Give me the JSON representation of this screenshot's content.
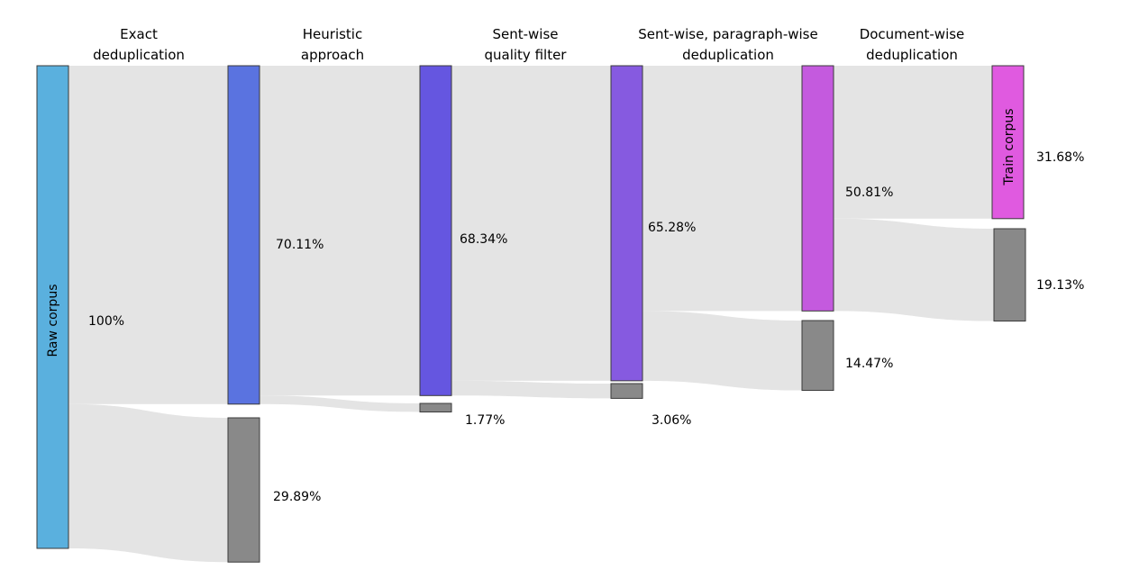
{
  "stages": [
    {
      "lines": [
        "Exact",
        "deduplication"
      ]
    },
    {
      "lines": [
        "Heuristic",
        "approach"
      ]
    },
    {
      "lines": [
        "Sent-wise",
        "quality filter"
      ]
    },
    {
      "lines": [
        "Sent-wise, paragraph-wise",
        "deduplication"
      ]
    },
    {
      "lines": [
        "Document-wise",
        "deduplication"
      ]
    }
  ],
  "nodes": {
    "raw": {
      "label": "Raw corpus",
      "pct": "100%",
      "color": "#5ab0de"
    },
    "heur": {
      "pct": "70.11%",
      "color": "#5a73e0"
    },
    "heur_drop": {
      "pct": "29.89%",
      "color": "#898989"
    },
    "qual": {
      "pct": "68.34%",
      "color": "#6556e0"
    },
    "qual_drop": {
      "pct": "1.77%",
      "color": "#898989"
    },
    "para": {
      "pct": "65.28%",
      "color": "#865ae0"
    },
    "para_drop": {
      "pct": "3.06%",
      "color": "#898989"
    },
    "doc": {
      "pct": "50.81%",
      "color": "#c45ade"
    },
    "doc_drop": {
      "pct": "14.47%",
      "color": "#898989"
    },
    "train": {
      "label": "Train corpus",
      "pct": "31.68%",
      "color": "#e05ae0"
    },
    "train_drop": {
      "pct": "19.13%",
      "color": "#898989"
    }
  },
  "links": [
    {
      "source": "raw",
      "target": "heur",
      "value": 70.11
    },
    {
      "source": "raw",
      "target": "heur_drop",
      "value": 29.89
    },
    {
      "source": "heur",
      "target": "qual",
      "value": 68.34
    },
    {
      "source": "heur",
      "target": "qual_drop",
      "value": 1.77
    },
    {
      "source": "qual",
      "target": "para",
      "value": 65.28
    },
    {
      "source": "qual",
      "target": "para_drop",
      "value": 3.06
    },
    {
      "source": "para",
      "target": "doc",
      "value": 50.81
    },
    {
      "source": "para",
      "target": "doc_drop",
      "value": 14.47
    },
    {
      "source": "doc",
      "target": "train",
      "value": 31.68
    },
    {
      "source": "doc",
      "target": "train_drop",
      "value": 19.13
    }
  ]
}
